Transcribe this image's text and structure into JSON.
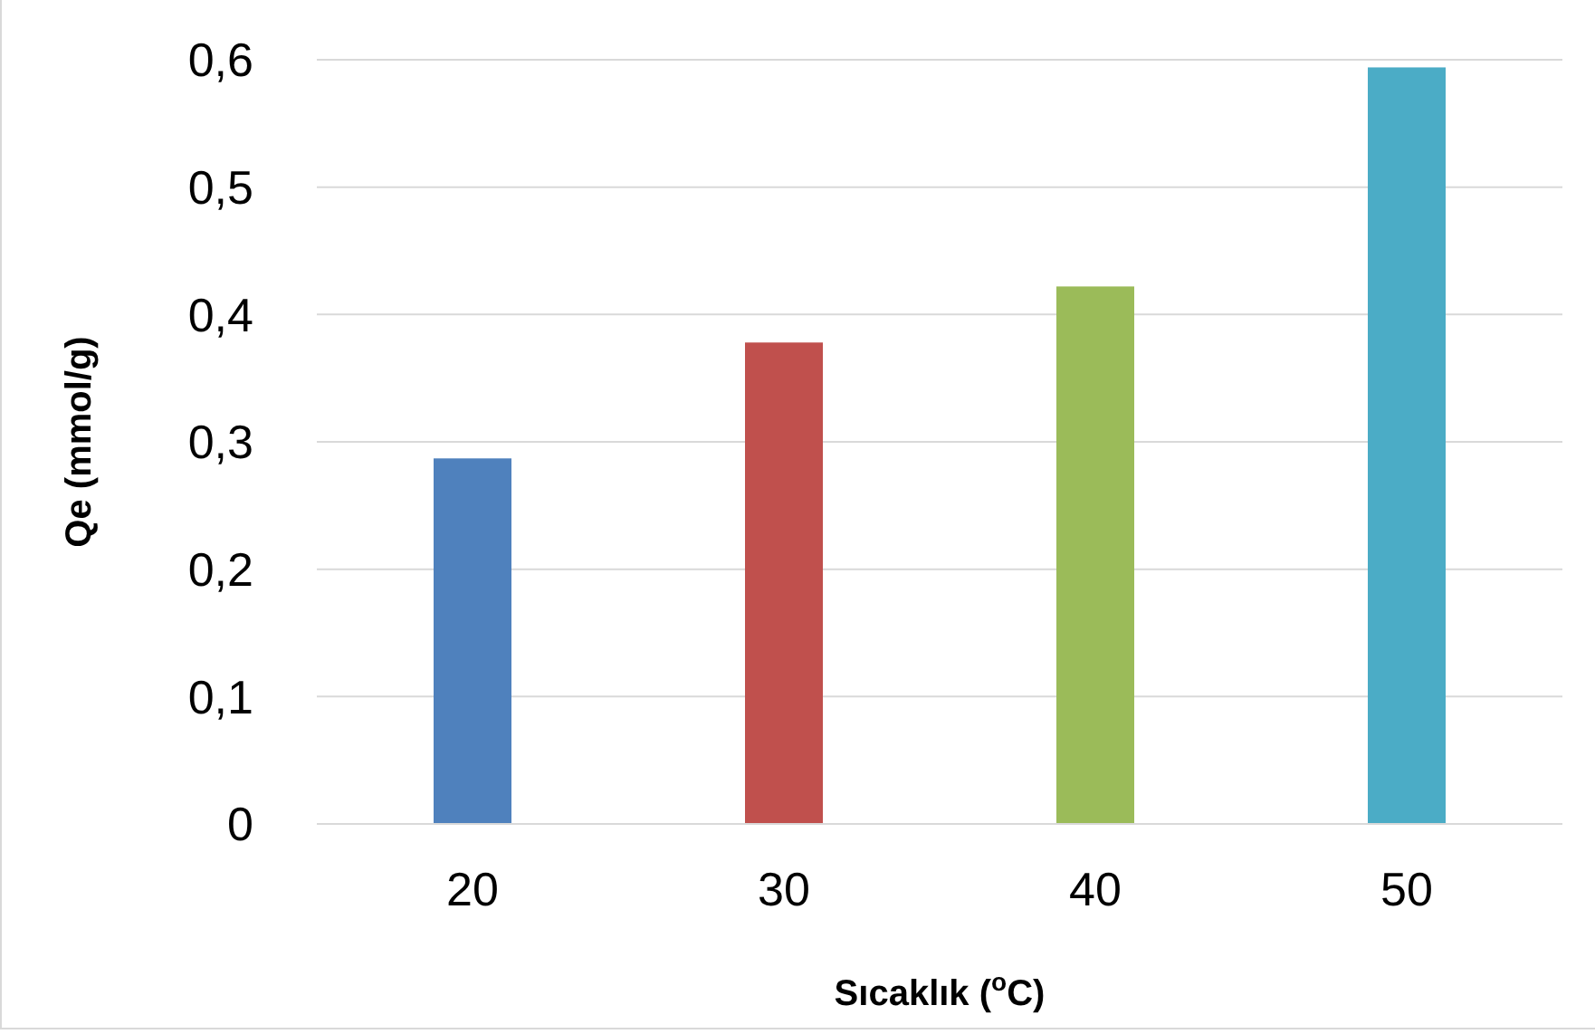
{
  "chart_data": {
    "type": "bar",
    "xlabel": "Sıcaklık ($^{o}$C)",
    "ylabel": "Qe (mmol/g)",
    "categories": [
      "20",
      "30",
      "40",
      "50"
    ],
    "values": [
      0.287,
      0.378,
      0.422,
      0.594
    ],
    "colors": [
      "#4f81bd",
      "#c0504d",
      "#9bbb59",
      "#4bacc6"
    ],
    "ylim": [
      0,
      0.6
    ],
    "yticks": [
      0,
      {
        "value": 0.1,
        "label": "0,1"
      },
      {
        "value": 0.2,
        "label": "0,2"
      },
      {
        "value": 0.3,
        "label": "0,3"
      },
      {
        "value": 0.4,
        "label": "0,4"
      },
      {
        "value": 0.5,
        "label": "0,5"
      },
      {
        "value": 0.6,
        "label": "0,6"
      }
    ],
    "grid": "y"
  }
}
